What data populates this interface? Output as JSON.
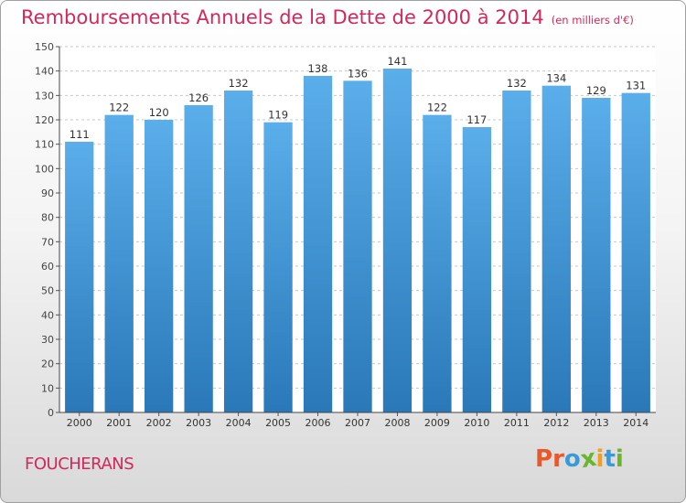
{
  "chart_data": {
    "type": "bar",
    "title": "Remboursements Annuels de la Dette de 2000 à 2014",
    "unit_label": "(en milliers d'€)",
    "categories": [
      "2000",
      "2001",
      "2002",
      "2003",
      "2004",
      "2005",
      "2006",
      "2007",
      "2008",
      "2009",
      "2010",
      "2011",
      "2012",
      "2013",
      "2014"
    ],
    "values": [
      111,
      122,
      120,
      126,
      132,
      119,
      138,
      136,
      141,
      122,
      117,
      132,
      134,
      129,
      131
    ],
    "ylim": [
      0,
      150
    ],
    "yticks": [
      0,
      10,
      20,
      30,
      40,
      50,
      60,
      70,
      80,
      90,
      100,
      110,
      120,
      130,
      140,
      150
    ],
    "grid": "horizontal-dashed",
    "bar_color_top": "#5aaeea",
    "bar_color_bottom": "#2a78b8"
  },
  "commune": "FOUCHERANS",
  "logo": {
    "letters": [
      "P",
      "r",
      "o",
      "x",
      "i",
      "t",
      "i"
    ],
    "colors": [
      "#e8582a",
      "#e8582a",
      "#3a9ad8",
      "#6ab42e",
      "#f0a020",
      "#3a9ad8",
      "#6ab42e"
    ]
  }
}
